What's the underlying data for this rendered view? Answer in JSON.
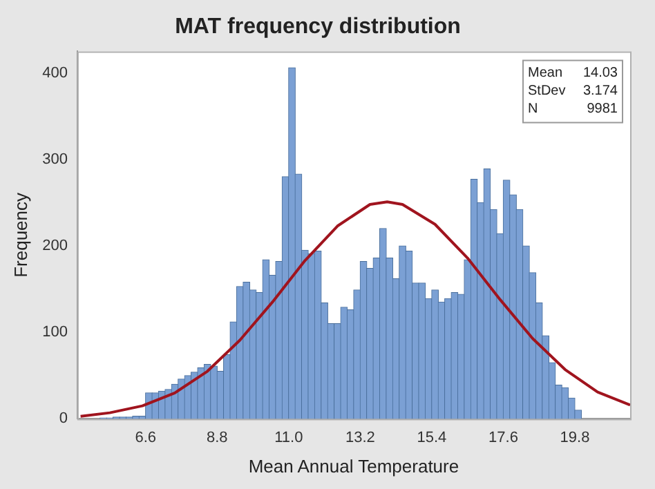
{
  "chart_data": {
    "type": "histogram",
    "title": "MAT frequency distribution",
    "xlabel": "Mean Annual Temperature",
    "ylabel": "Frequency",
    "bins": [
      5.2,
      5.4,
      5.6,
      5.8,
      6.0,
      6.2,
      6.4,
      6.6,
      6.8,
      7.0,
      7.2,
      7.4,
      7.6,
      7.8,
      8.0,
      8.2,
      8.4,
      8.6,
      8.8,
      9.0,
      9.2,
      9.4,
      9.6,
      9.8,
      10.0,
      10.2,
      10.4,
      10.6,
      10.8,
      11.0,
      11.2,
      11.4,
      11.6,
      11.8,
      12.0,
      12.2,
      12.4,
      12.6,
      12.8,
      13.0,
      13.2,
      13.4,
      13.6,
      13.8,
      14.0,
      14.2,
      14.4,
      14.6,
      14.8,
      15.0,
      15.2,
      15.4,
      15.6,
      15.8,
      16.0,
      16.2,
      16.4,
      16.6,
      16.8,
      17.0,
      17.2,
      17.4,
      17.6,
      17.8,
      18.0,
      18.2,
      18.4,
      18.6,
      18.8,
      19.0,
      19.2,
      19.4,
      19.6,
      19.8,
      20.0
    ],
    "values": [
      1,
      1,
      2,
      2,
      2,
      3,
      3,
      30,
      30,
      32,
      34,
      40,
      46,
      50,
      54,
      59,
      63,
      61,
      55,
      74,
      112,
      153,
      158,
      149,
      146,
      184,
      166,
      182,
      280,
      406,
      283,
      195,
      191,
      194,
      134,
      110,
      110,
      129,
      126,
      149,
      182,
      174,
      186,
      220,
      186,
      162,
      200,
      194,
      157,
      157,
      139,
      149,
      135,
      139,
      146,
      144,
      184,
      277,
      250,
      289,
      242,
      214,
      276,
      259,
      242,
      200,
      169,
      134,
      96,
      65,
      39,
      36,
      24,
      10
    ],
    "color": "#7ba0d4",
    "series": [
      {
        "type": "line",
        "color": "#a0141e",
        "x": [
          4.6,
          5.5,
          6.5,
          7.5,
          8.5,
          9.5,
          10.5,
          11.5,
          12.5,
          13.5,
          14.03,
          14.5,
          15.5,
          16.5,
          17.5,
          18.5,
          19.5,
          20.5,
          21.5
        ],
        "values": [
          3,
          7,
          15,
          30,
          55,
          91,
          135,
          183,
          223,
          248,
          251,
          248,
          225,
          186,
          138,
          93,
          57,
          31,
          16
        ]
      }
    ],
    "xlim": [
      4.5,
      21.5
    ],
    "xticks": [
      6.6,
      8.8,
      {
        "value": 11,
        "label": "11.0"
      },
      13.2,
      15.4,
      17.6,
      19.8
    ],
    "ylim": [
      0,
      425
    ],
    "yticks": [
      0,
      100,
      200,
      300,
      400
    ],
    "grid": false,
    "annotations": [
      "Mean 14.03",
      "StDev 3.174",
      "N 9981"
    ]
  }
}
